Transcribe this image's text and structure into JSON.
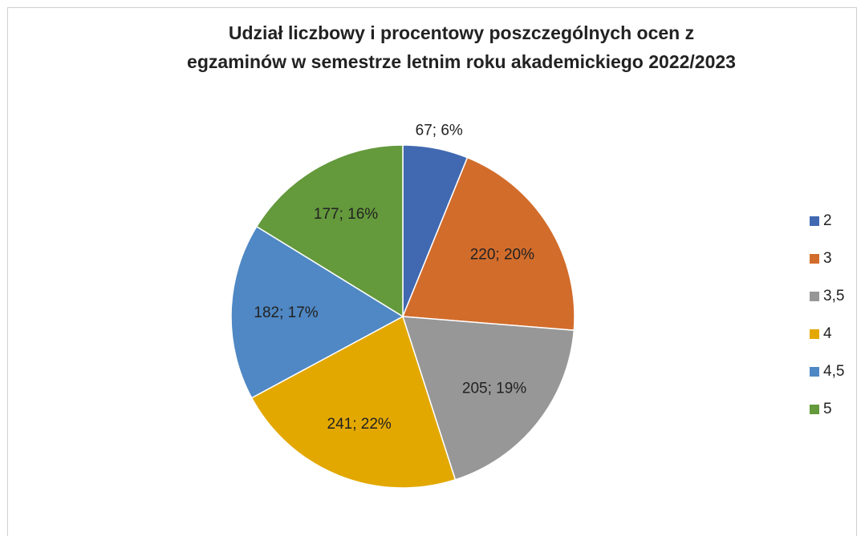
{
  "chart_data": {
    "type": "pie",
    "title": [
      "Udział liczbowy i procentowy poszczególnych ocen z",
      "egzaminów w semestrze letnim roku akademickiego 2022/2023"
    ],
    "categories": [
      "2",
      "3",
      "3,5",
      "4",
      "4,5",
      "5"
    ],
    "values": [
      67,
      220,
      205,
      241,
      182,
      177
    ],
    "value_labels": [
      "67; 6%",
      "220; 20%",
      "205; 19%",
      "241; 22%",
      "182; 17%",
      "177; 16%"
    ],
    "colors": [
      "#4169b1",
      "#d26c2b",
      "#979797",
      "#e3a800",
      "#4f88c4",
      "#64993c"
    ],
    "legend": "right"
  }
}
